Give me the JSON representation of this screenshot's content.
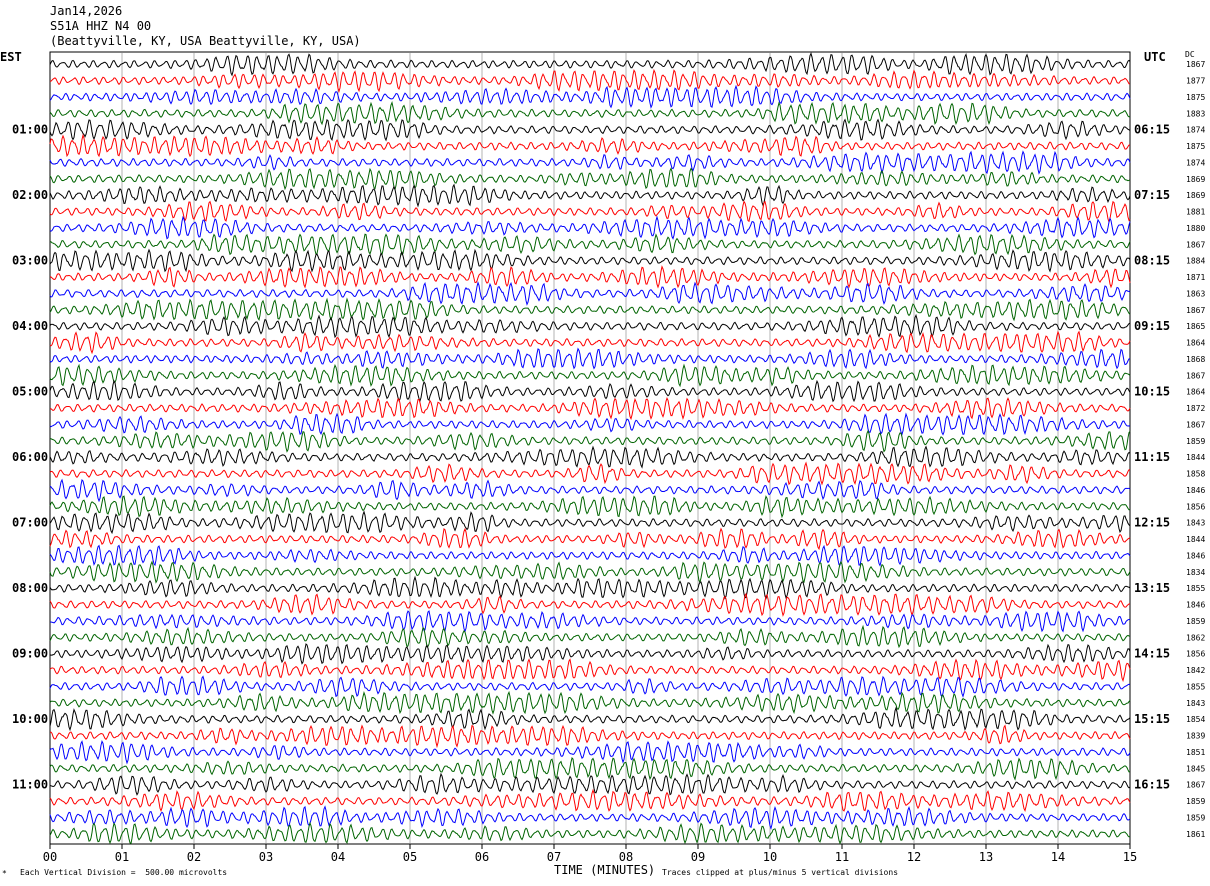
{
  "header": {
    "date": "Jan14,2026",
    "channel": "S51A HHZ N4 00",
    "location": "(Beattyville, KY, USA Beattyville, KY, USA)"
  },
  "left_tz": "EST",
  "right_tz": "UTC",
  "dc_label": "DC",
  "footer": {
    "xlabel": "TIME (MINUTES)",
    "scale_note": "Each Vertical Division =  500.00 microvolts",
    "clip_note": "Traces clipped at plus/minus 5 vertical divisions"
  },
  "colors": {
    "trace_cycle": [
      "#000000",
      "#ff0000",
      "#0000ff",
      "#006400"
    ],
    "grid": "#808080",
    "axis": "#000000"
  },
  "chart_data": {
    "type": "line",
    "title": "Jan14,2026 S51A HHZ N4 00",
    "xlabel": "TIME (MINUTES)",
    "xlim": [
      0,
      15
    ],
    "x_ticks": [
      "00",
      "01",
      "02",
      "03",
      "04",
      "05",
      "06",
      "07",
      "08",
      "09",
      "10",
      "11",
      "12",
      "13",
      "14",
      "15"
    ],
    "trace_minutes": 15,
    "trace_count": 48,
    "left_time_labels": [
      "01:00",
      "02:00",
      "03:00",
      "04:00",
      "05:00",
      "06:00",
      "07:00",
      "08:00",
      "09:00",
      "10:00",
      "11:00"
    ],
    "right_time_labels": [
      "06:15",
      "07:15",
      "08:15",
      "09:15",
      "10:15",
      "11:15",
      "12:15",
      "13:15",
      "14:15",
      "15:15",
      "16:15"
    ],
    "dc_values": [
      1867,
      1877,
      1875,
      1883,
      1874,
      1875,
      1874,
      1869,
      1869,
      1881,
      1880,
      1867,
      1884,
      1871,
      1863,
      1867,
      1865,
      1864,
      1868,
      1867,
      1864,
      1872,
      1867,
      1859,
      1844,
      1858,
      1846,
      1856,
      1843,
      1844,
      1846,
      1834,
      1855,
      1846,
      1859,
      1862,
      1856,
      1842,
      1855,
      1843,
      1854,
      1839,
      1851,
      1845,
      1867,
      1859,
      1859,
      1861
    ],
    "vertical_division_microvolts": 500.0,
    "clip_divisions": 5
  }
}
